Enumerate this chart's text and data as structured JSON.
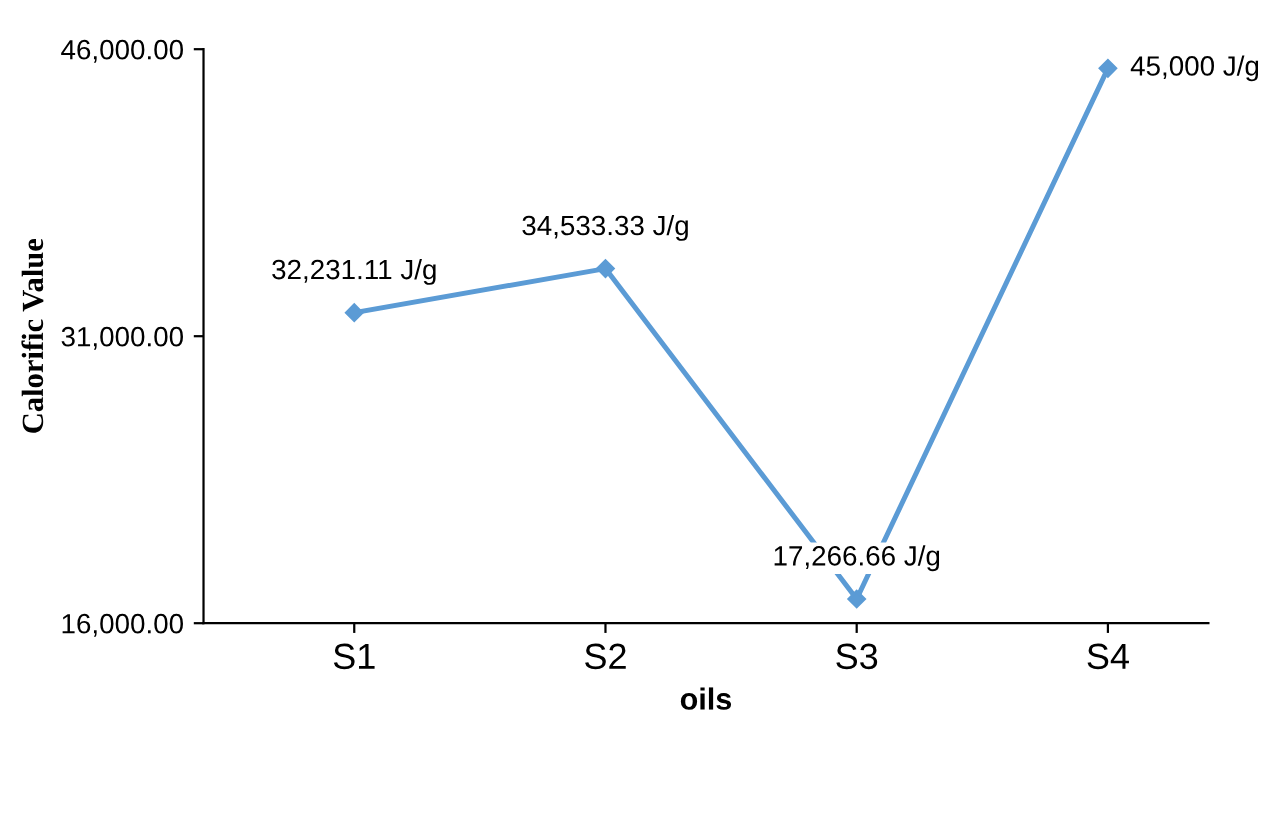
{
  "chart_data": {
    "type": "line",
    "xlabel": "oils",
    "ylabel": "Calorific Value",
    "categories": [
      "S1",
      "S2",
      "S3",
      "S4"
    ],
    "series": [
      {
        "color": "#5b9bd5",
        "values": [
          32231.11,
          34533.33,
          17266.66,
          45000
        ],
        "value_labels": [
          "32,231.11 J/g",
          "34,533.33 J/g",
          "17,266.66 J/g",
          "45,000 J/g"
        ]
      }
    ],
    "ylim": [
      16000,
      46000
    ],
    "yticks": [
      {
        "value": 16000,
        "label": "16,000.00"
      },
      {
        "value": 31000,
        "label": "31,000.00"
      },
      {
        "value": 46000,
        "label": "46,000.00"
      }
    ],
    "grid": false,
    "marker": "diamond",
    "line_style": "solid"
  }
}
